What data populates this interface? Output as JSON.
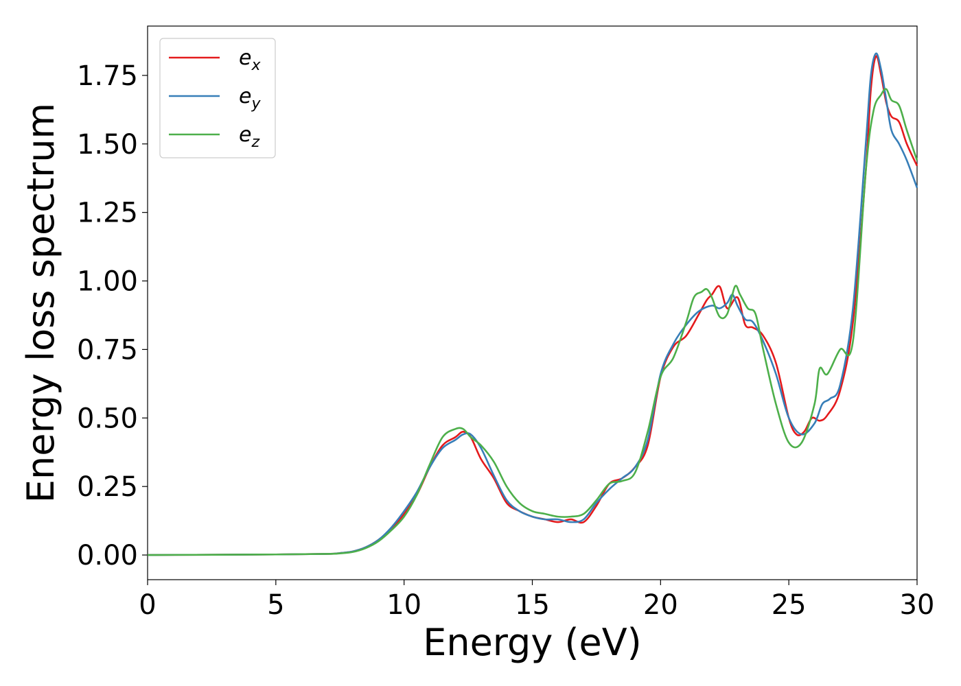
{
  "chart_data": {
    "type": "line",
    "title": "",
    "xlabel": "Energy (eV)",
    "ylabel": "Energy loss spectrum",
    "xlim": [
      0,
      30
    ],
    "ylim": [
      -0.09,
      1.93
    ],
    "xticks": [
      "0",
      "5",
      "10",
      "15",
      "20",
      "25",
      "30"
    ],
    "yticks": [
      "0.00",
      "0.25",
      "0.50",
      "0.75",
      "1.00",
      "1.25",
      "1.50",
      "1.75"
    ],
    "grid": false,
    "legend_position": "upper-left",
    "series": [
      {
        "name": "e_x",
        "legend_base": "e",
        "legend_sub": "x",
        "color": "#e41a1c",
        "x": [
          0,
          5,
          7,
          7.5,
          8,
          8.5,
          9,
          9.5,
          10,
          10.5,
          11,
          11.5,
          12,
          12.3,
          12.6,
          13,
          13.5,
          14,
          14.5,
          15,
          15.5,
          16,
          16.5,
          17,
          17.5,
          18,
          18.5,
          19,
          19.5,
          20,
          20.5,
          21,
          21.5,
          21.8,
          22,
          22.3,
          22.6,
          23,
          23.3,
          23.6,
          24,
          24.5,
          25,
          25.3,
          25.6,
          25.9,
          26.2,
          26.5,
          27,
          27.5,
          28,
          28.2,
          28.4,
          28.6,
          28.8,
          29,
          29.3,
          29.6,
          30
        ],
        "y": [
          0.0,
          0.002,
          0.004,
          0.007,
          0.013,
          0.028,
          0.055,
          0.095,
          0.15,
          0.22,
          0.32,
          0.4,
          0.43,
          0.45,
          0.43,
          0.35,
          0.28,
          0.19,
          0.16,
          0.14,
          0.13,
          0.12,
          0.13,
          0.12,
          0.18,
          0.26,
          0.28,
          0.32,
          0.4,
          0.65,
          0.76,
          0.8,
          0.88,
          0.93,
          0.95,
          0.98,
          0.9,
          0.94,
          0.84,
          0.83,
          0.8,
          0.7,
          0.5,
          0.44,
          0.45,
          0.5,
          0.49,
          0.51,
          0.6,
          0.85,
          1.4,
          1.7,
          1.82,
          1.75,
          1.65,
          1.6,
          1.58,
          1.5,
          1.42
        ]
      },
      {
        "name": "e_y",
        "legend_base": "e",
        "legend_sub": "y",
        "color": "#377eb8",
        "x": [
          0,
          5,
          7,
          7.5,
          8,
          8.5,
          9,
          9.5,
          10,
          10.5,
          11,
          11.5,
          12,
          12.3,
          12.6,
          13,
          13.5,
          14,
          14.5,
          15,
          15.5,
          16,
          16.5,
          17,
          17.5,
          18,
          18.5,
          19,
          19.5,
          20,
          20.5,
          21,
          21.5,
          22,
          22.3,
          22.6,
          22.8,
          23,
          23.3,
          23.6,
          24,
          24.5,
          25,
          25.5,
          26,
          26.3,
          26.6,
          27,
          27.5,
          28,
          28.2,
          28.4,
          28.6,
          28.8,
          29,
          29.3,
          29.6,
          30
        ],
        "y": [
          0.0,
          0.002,
          0.004,
          0.007,
          0.013,
          0.028,
          0.055,
          0.1,
          0.16,
          0.23,
          0.32,
          0.39,
          0.42,
          0.44,
          0.44,
          0.39,
          0.29,
          0.2,
          0.16,
          0.14,
          0.13,
          0.13,
          0.12,
          0.13,
          0.19,
          0.24,
          0.28,
          0.32,
          0.42,
          0.66,
          0.77,
          0.84,
          0.89,
          0.91,
          0.9,
          0.92,
          0.95,
          0.91,
          0.86,
          0.85,
          0.78,
          0.66,
          0.5,
          0.44,
          0.48,
          0.55,
          0.57,
          0.62,
          0.9,
          1.5,
          1.75,
          1.83,
          1.77,
          1.66,
          1.55,
          1.5,
          1.44,
          1.34
        ]
      },
      {
        "name": "e_z",
        "legend_base": "e",
        "legend_sub": "z",
        "color": "#4daf4a",
        "x": [
          0,
          5,
          7,
          7.5,
          8,
          8.5,
          9,
          9.5,
          10,
          10.5,
          11,
          11.5,
          12,
          12.3,
          12.6,
          13,
          13.5,
          14,
          14.5,
          15,
          15.5,
          16,
          16.5,
          17,
          17.5,
          18,
          18.5,
          19,
          19.5,
          20,
          20.5,
          21,
          21.3,
          21.6,
          21.8,
          22,
          22.3,
          22.6,
          22.9,
          23.1,
          23.4,
          23.7,
          24,
          24.5,
          25,
          25.5,
          26,
          26.2,
          26.5,
          27,
          27.5,
          28,
          28.3,
          28.6,
          28.8,
          29,
          29.3,
          29.6,
          30
        ],
        "y": [
          0.0,
          0.002,
          0.004,
          0.006,
          0.011,
          0.025,
          0.05,
          0.09,
          0.14,
          0.22,
          0.33,
          0.43,
          0.46,
          0.46,
          0.43,
          0.4,
          0.34,
          0.25,
          0.19,
          0.16,
          0.15,
          0.14,
          0.14,
          0.15,
          0.2,
          0.26,
          0.27,
          0.3,
          0.45,
          0.65,
          0.72,
          0.85,
          0.94,
          0.96,
          0.97,
          0.94,
          0.87,
          0.88,
          0.98,
          0.95,
          0.9,
          0.88,
          0.75,
          0.55,
          0.41,
          0.41,
          0.55,
          0.68,
          0.66,
          0.75,
          0.78,
          1.4,
          1.62,
          1.68,
          1.7,
          1.66,
          1.64,
          1.55,
          1.44
        ]
      }
    ]
  }
}
